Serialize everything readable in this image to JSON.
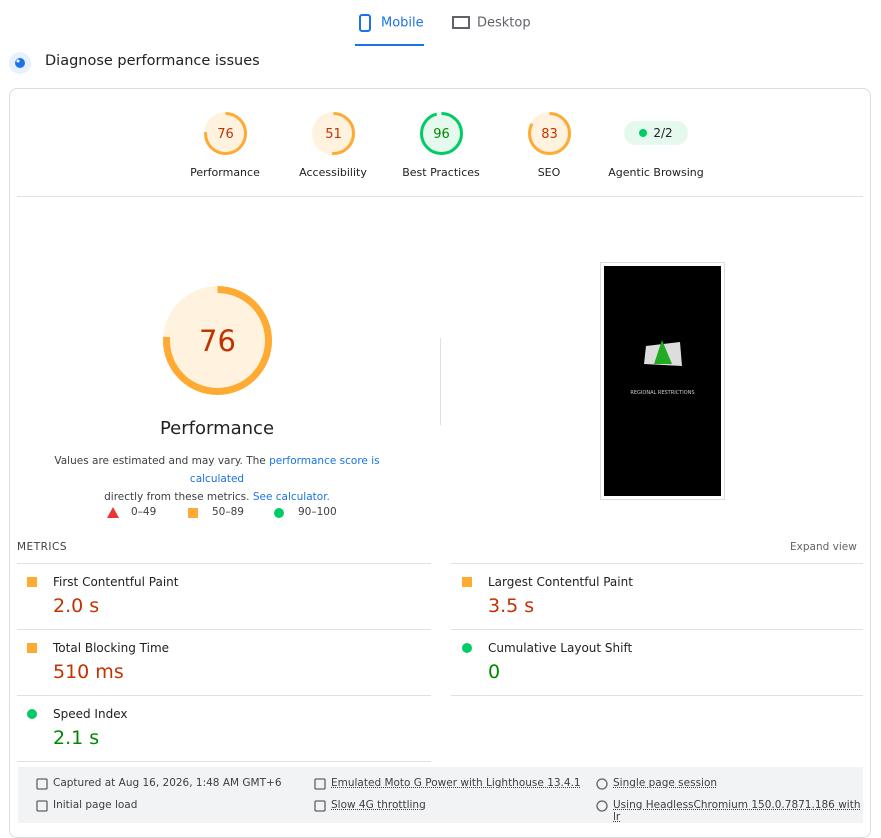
{
  "tabs": {
    "items": [
      "Mobile",
      "Desktop"
    ],
    "active": 0
  },
  "header": {
    "title": "Diagnose performance issues"
  },
  "scores": [
    {
      "label": "Performance",
      "value": 76,
      "rating": "average"
    },
    {
      "label": "Accessibility",
      "value": 51,
      "rating": "average"
    },
    {
      "label": "Best Practices",
      "value": 96,
      "rating": "pass"
    },
    {
      "label": "SEO",
      "value": 83,
      "rating": "average"
    },
    {
      "label": "Agentic Browsing",
      "text": "2/2",
      "rating": "pass"
    }
  ],
  "description": {
    "part1": "Values are estimated and may vary. The ",
    "link1": "performance score is calculated",
    "part2": "directly from these metrics. ",
    "link2": "See calculator."
  },
  "legend": [
    "0–49",
    "50–89",
    "90–100"
  ],
  "screenshot": {
    "banner": "REGIONAL RESTRICTIONS"
  },
  "metrics": {
    "heading": "METRICS",
    "expand": "Expand view",
    "items": [
      {
        "name": "First Contentful Paint",
        "value": "2.0 s",
        "rating": "average"
      },
      {
        "name": "Largest Contentful Paint",
        "value": "3.5 s",
        "rating": "average"
      },
      {
        "name": "Total Blocking Time",
        "value": "510 ms",
        "rating": "average"
      },
      {
        "name": "Cumulative Layout Shift",
        "value": "0",
        "rating": "pass"
      },
      {
        "name": "Speed Index",
        "value": "2.1 s",
        "rating": "pass"
      }
    ]
  },
  "footer": [
    "Captured at Aug 16, 2026, 1:48 AM GMT+6",
    "Emulated Moto G Power with Lighthouse 13.4.1",
    "Single page session",
    "Initial page load",
    "Slow 4G throttling",
    "Using HeadlessChromium 150.0.7871.186 with lr"
  ]
}
